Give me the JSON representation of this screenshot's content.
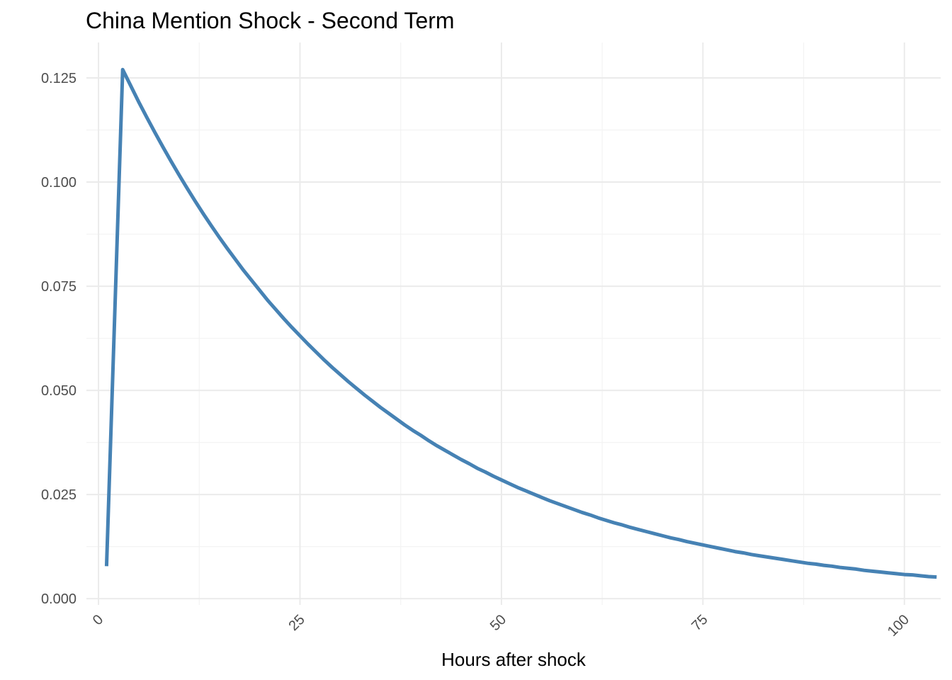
{
  "chart_data": {
    "type": "line",
    "title": "China Mention Shock - Second Term",
    "xlabel": "Hours after shock",
    "ylabel": "",
    "xlim": [
      -1.5,
      104.5
    ],
    "ylim": [
      -0.0015,
      0.1335
    ],
    "x_ticks": [
      0,
      25,
      50,
      75,
      100
    ],
    "x_tick_labels": [
      "0",
      "25",
      "50",
      "75",
      "100"
    ],
    "y_ticks": [
      0,
      0.025,
      0.05,
      0.075,
      0.1,
      0.125
    ],
    "y_tick_labels": [
      "0.000",
      "0.025",
      "0.050",
      "0.075",
      "0.100",
      "0.125"
    ],
    "x_minor_ticks": [
      12.5,
      37.5,
      62.5,
      87.5
    ],
    "y_minor_ticks": [
      0.0125,
      0.0375,
      0.0625,
      0.0875,
      0.1125
    ],
    "x_tick_rotation_deg": -45,
    "grid": true,
    "line_color": "#4682b4",
    "series": [
      {
        "x": [
          1,
          3,
          4,
          5,
          6,
          7,
          8,
          9,
          10,
          11,
          12,
          13,
          14,
          15,
          16,
          17,
          18,
          19,
          20,
          21,
          22,
          23,
          24,
          25,
          26,
          27,
          28,
          29,
          30,
          31,
          32,
          33,
          34,
          35,
          36,
          37,
          38,
          39,
          40,
          41,
          42,
          43,
          44,
          45,
          46,
          47,
          48,
          49,
          50,
          51,
          52,
          53,
          54,
          55,
          56,
          57,
          58,
          59,
          60,
          61,
          62,
          63,
          64,
          65,
          66,
          67,
          68,
          69,
          70,
          71,
          72,
          73,
          74,
          75,
          76,
          77,
          78,
          79,
          80,
          81,
          82,
          83,
          84,
          85,
          86,
          87,
          88,
          89,
          90,
          91,
          92,
          93,
          94,
          95,
          96,
          97,
          98,
          99,
          100,
          101,
          102,
          103,
          104
        ],
        "values": [
          0.0078,
          0.127,
          0.1231,
          0.1192,
          0.1155,
          0.1119,
          0.1084,
          0.105,
          0.1017,
          0.0985,
          0.0954,
          0.0924,
          0.0895,
          0.0867,
          0.084,
          0.0814,
          0.0788,
          0.0764,
          0.074,
          0.0716,
          0.0694,
          0.0672,
          0.0651,
          0.0631,
          0.0611,
          0.0592,
          0.0573,
          0.0555,
          0.0538,
          0.0521,
          0.0505,
          0.0489,
          0.0474,
          0.0459,
          0.0445,
          0.0431,
          0.0417,
          0.0404,
          0.0392,
          0.0379,
          0.0367,
          0.0356,
          0.0345,
          0.0334,
          0.0324,
          0.0313,
          0.0304,
          0.0294,
          0.0285,
          0.0276,
          0.0267,
          0.0259,
          0.0251,
          0.0243,
          0.0235,
          0.0228,
          0.0221,
          0.0214,
          0.0207,
          0.0201,
          0.0194,
          0.0188,
          0.0182,
          0.0177,
          0.0171,
          0.0166,
          0.0161,
          0.0156,
          0.0151,
          0.0146,
          0.0142,
          0.0137,
          0.0133,
          0.0129,
          0.0125,
          0.0121,
          0.0117,
          0.0113,
          0.011,
          0.0106,
          0.0103,
          0.01,
          0.0097,
          0.0094,
          0.0091,
          0.0088,
          0.0085,
          0.0083,
          0.008,
          0.0078,
          0.0075,
          0.0073,
          0.0071,
          0.0068,
          0.0066,
          0.0064,
          0.0062,
          0.006,
          0.0058,
          0.0057,
          0.0055,
          0.0053,
          0.0052
        ]
      }
    ]
  }
}
